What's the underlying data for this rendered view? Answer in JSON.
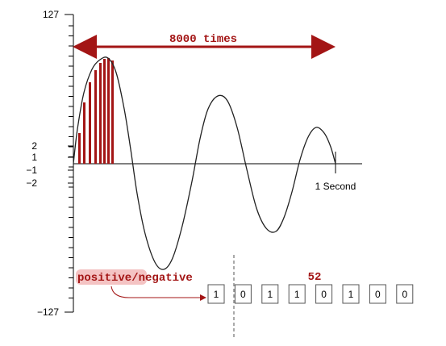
{
  "y_axis": {
    "top_label": "127",
    "bottom_label": "−127",
    "pos_labels": [
      "2",
      "1"
    ],
    "neg_labels": [
      "−1",
      "−2"
    ]
  },
  "annotations": {
    "span_label": "8000 times",
    "time_label": "1 Second",
    "sign_bit_positive": "positive",
    "sign_bit_slash": "/",
    "sign_bit_negative": "negative",
    "byte_value": "52"
  },
  "bits": [
    "1",
    "0",
    "1",
    "1",
    "0",
    "1",
    "0",
    "0"
  ],
  "colors": {
    "accent_red": "#a31515",
    "highlight": "#f2b8b8",
    "wave": "#222222"
  }
}
